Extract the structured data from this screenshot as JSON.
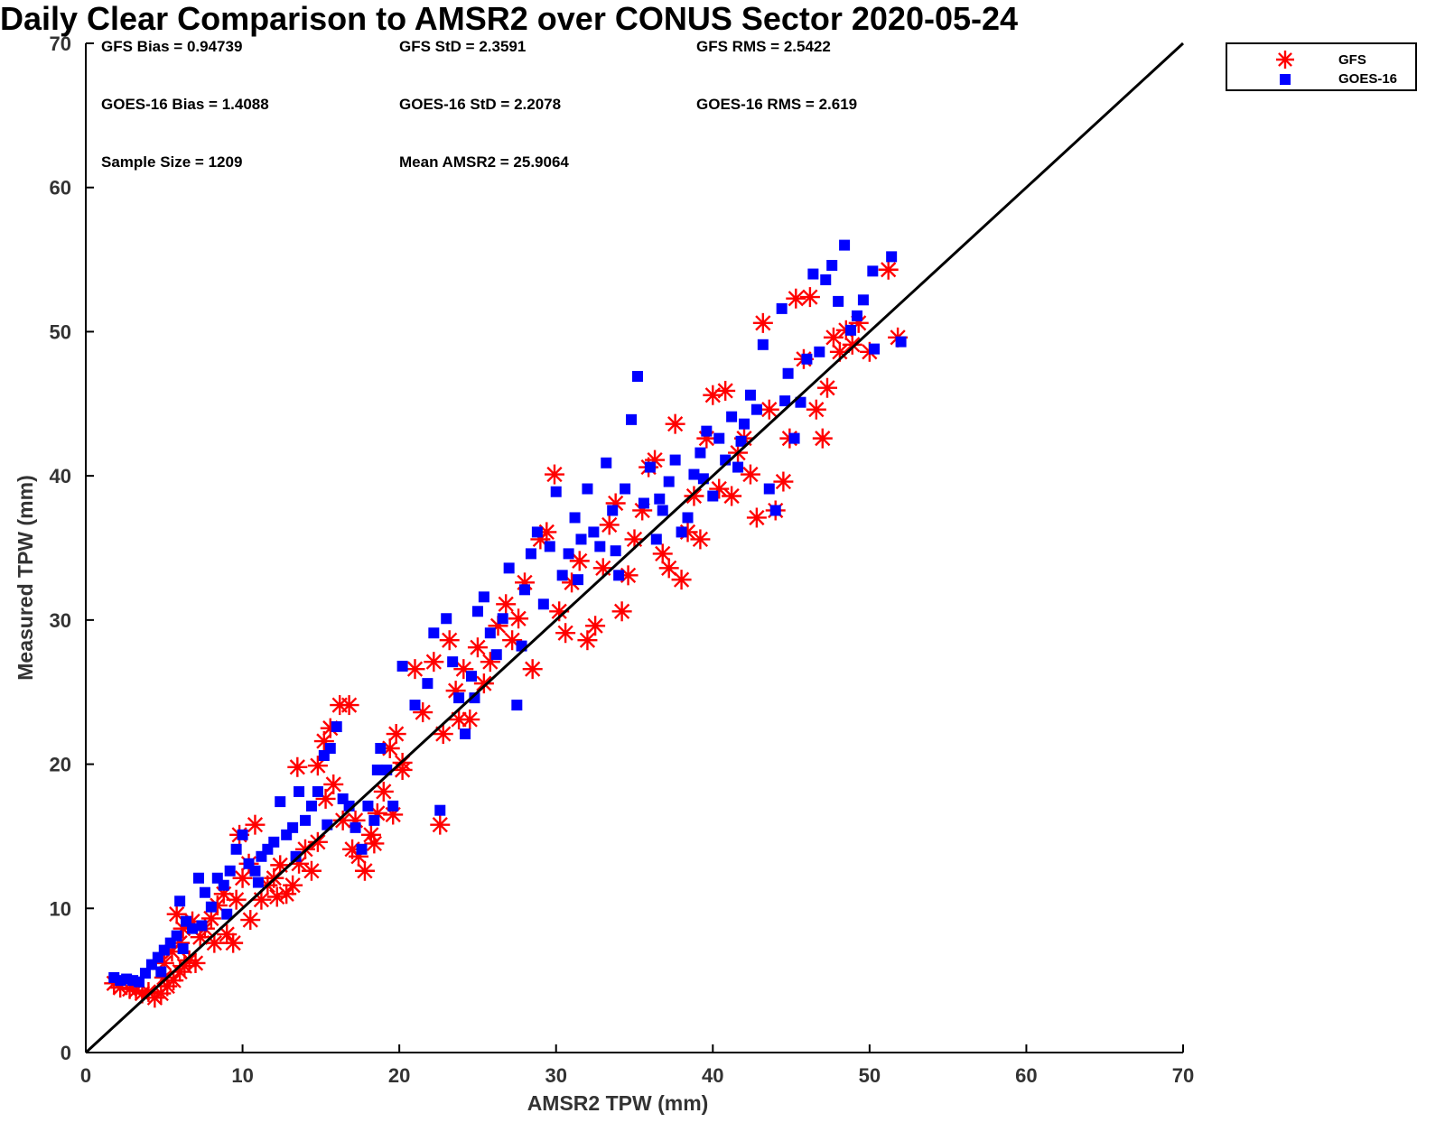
{
  "chart_data": {
    "type": "scatter",
    "title": "Daily Clear Comparison to AMSR2 over CONUS Sector 2020-05-24",
    "xlabel": "AMSR2 TPW (mm)",
    "ylabel": "Measured TPW (mm)",
    "xlim": [
      0,
      70
    ],
    "ylim": [
      0,
      70
    ],
    "xticks": [
      "0",
      "10",
      "20",
      "30",
      "40",
      "50",
      "60",
      "70"
    ],
    "yticks": [
      "0",
      "10",
      "20",
      "30",
      "40",
      "50",
      "60",
      "70"
    ],
    "grid": false,
    "legend_position": "top-right outside",
    "reference_line": "1:1 diagonal",
    "stats": [
      "GFS Bias = 0.94739",
      "GFS StD = 2.3591",
      "GFS RMS = 2.5422",
      "GOES-16 Bias = 1.4088",
      "GOES-16 StD = 2.2078",
      "GOES-16 RMS = 2.619",
      "Sample Size = 1209",
      "Mean AMSR2 = 25.9064"
    ],
    "series": [
      {
        "name": "GFS",
        "color": "#ff0000",
        "marker": "asterisk",
        "points": [
          [
            1.8,
            4.8
          ],
          [
            2.2,
            4.5
          ],
          [
            2.8,
            4.4
          ],
          [
            3.2,
            4.3
          ],
          [
            3.6,
            4.1
          ],
          [
            4.0,
            4.2
          ],
          [
            4.4,
            3.8
          ],
          [
            4.8,
            4.1
          ],
          [
            5.2,
            4.6
          ],
          [
            5.6,
            5.0
          ],
          [
            6.0,
            5.6
          ],
          [
            6.3,
            6.0
          ],
          [
            6.6,
            6.4
          ],
          [
            5.0,
            6.2
          ],
          [
            5.5,
            7.0
          ],
          [
            6.0,
            7.6
          ],
          [
            6.2,
            8.6
          ],
          [
            6.8,
            9.1
          ],
          [
            5.8,
            9.6
          ],
          [
            7.3,
            8.0
          ],
          [
            7.6,
            8.6
          ],
          [
            8.0,
            9.3
          ],
          [
            8.4,
            10.2
          ],
          [
            8.8,
            11.0
          ],
          [
            9.0,
            8.2
          ],
          [
            9.4,
            7.6
          ],
          [
            9.6,
            10.6
          ],
          [
            10.0,
            12.1
          ],
          [
            10.4,
            13.1
          ],
          [
            10.8,
            15.8
          ],
          [
            9.8,
            15.1
          ],
          [
            11.2,
            10.6
          ],
          [
            11.6,
            11.6
          ],
          [
            12.0,
            12.1
          ],
          [
            12.4,
            13.0
          ],
          [
            12.8,
            11.0
          ],
          [
            13.2,
            11.6
          ],
          [
            13.6,
            13.1
          ],
          [
            14.0,
            14.1
          ],
          [
            14.4,
            12.6
          ],
          [
            13.5,
            19.8
          ],
          [
            14.8,
            19.9
          ],
          [
            15.2,
            21.6
          ],
          [
            15.6,
            22.5
          ],
          [
            16.2,
            24.1
          ],
          [
            16.8,
            24.1
          ],
          [
            15.3,
            17.6
          ],
          [
            15.8,
            18.6
          ],
          [
            16.4,
            16.1
          ],
          [
            17.0,
            14.1
          ],
          [
            17.4,
            13.6
          ],
          [
            17.8,
            12.6
          ],
          [
            18.2,
            15.1
          ],
          [
            18.6,
            16.6
          ],
          [
            19.0,
            18.1
          ],
          [
            19.4,
            21.1
          ],
          [
            19.8,
            22.1
          ],
          [
            20.2,
            19.6
          ],
          [
            19.6,
            16.5
          ],
          [
            18.4,
            14.5
          ],
          [
            21.0,
            26.6
          ],
          [
            21.5,
            23.6
          ],
          [
            22.2,
            27.1
          ],
          [
            22.6,
            15.8
          ],
          [
            22.8,
            22.1
          ],
          [
            23.2,
            28.6
          ],
          [
            23.6,
            25.1
          ],
          [
            24.1,
            26.6
          ],
          [
            24.5,
            23.1
          ],
          [
            25.0,
            28.1
          ],
          [
            25.4,
            25.6
          ],
          [
            25.8,
            27.1
          ],
          [
            26.3,
            29.6
          ],
          [
            26.8,
            31.1
          ],
          [
            27.2,
            28.6
          ],
          [
            27.6,
            30.1
          ],
          [
            28.0,
            32.6
          ],
          [
            28.5,
            26.6
          ],
          [
            29.0,
            35.6
          ],
          [
            29.4,
            36.1
          ],
          [
            29.9,
            40.1
          ],
          [
            30.2,
            30.6
          ],
          [
            30.6,
            29.1
          ],
          [
            31.0,
            32.6
          ],
          [
            31.5,
            34.1
          ],
          [
            32.0,
            28.6
          ],
          [
            32.5,
            29.6
          ],
          [
            33.0,
            33.6
          ],
          [
            33.4,
            36.6
          ],
          [
            33.8,
            38.1
          ],
          [
            34.2,
            30.6
          ],
          [
            34.6,
            33.1
          ],
          [
            35.0,
            35.6
          ],
          [
            35.5,
            37.6
          ],
          [
            35.9,
            40.6
          ],
          [
            36.3,
            41.1
          ],
          [
            36.8,
            34.6
          ],
          [
            37.2,
            33.6
          ],
          [
            37.6,
            43.6
          ],
          [
            38.0,
            32.8
          ],
          [
            38.4,
            36.1
          ],
          [
            38.8,
            38.6
          ],
          [
            39.2,
            35.6
          ],
          [
            39.6,
            42.6
          ],
          [
            40.0,
            45.6
          ],
          [
            40.4,
            39.1
          ],
          [
            40.8,
            45.9
          ],
          [
            41.2,
            38.6
          ],
          [
            41.6,
            41.6
          ],
          [
            42.0,
            42.6
          ],
          [
            42.4,
            40.1
          ],
          [
            42.8,
            37.1
          ],
          [
            43.2,
            50.6
          ],
          [
            43.6,
            44.6
          ],
          [
            44.0,
            37.6
          ],
          [
            44.5,
            39.6
          ],
          [
            44.9,
            42.6
          ],
          [
            45.3,
            52.3
          ],
          [
            45.8,
            48.1
          ],
          [
            46.2,
            52.4
          ],
          [
            46.6,
            44.6
          ],
          [
            47.0,
            42.6
          ],
          [
            47.3,
            46.1
          ],
          [
            47.7,
            49.6
          ],
          [
            48.1,
            48.6
          ],
          [
            48.5,
            50.1
          ],
          [
            48.9,
            49.1
          ],
          [
            49.3,
            50.6
          ],
          [
            50.0,
            48.6
          ],
          [
            51.2,
            54.3
          ],
          [
            51.8,
            49.6
          ],
          [
            5.0,
            5.2
          ],
          [
            7.0,
            6.2
          ],
          [
            8.2,
            7.6
          ],
          [
            10.5,
            9.2
          ],
          [
            12.2,
            10.8
          ],
          [
            14.8,
            14.6
          ],
          [
            17.2,
            16.1
          ],
          [
            20.2,
            20.1
          ],
          [
            23.8,
            23.1
          ]
        ]
      },
      {
        "name": "GOES-16",
        "color": "#0000ff",
        "marker": "square",
        "points": [
          [
            1.8,
            5.2
          ],
          [
            2.2,
            5.0
          ],
          [
            2.6,
            5.1
          ],
          [
            3.0,
            5.0
          ],
          [
            3.4,
            4.9
          ],
          [
            3.8,
            5.5
          ],
          [
            4.2,
            6.1
          ],
          [
            4.6,
            6.6
          ],
          [
            5.0,
            7.1
          ],
          [
            5.4,
            7.6
          ],
          [
            5.8,
            8.1
          ],
          [
            6.0,
            10.5
          ],
          [
            6.4,
            9.1
          ],
          [
            6.8,
            8.6
          ],
          [
            7.2,
            12.1
          ],
          [
            7.6,
            11.1
          ],
          [
            8.0,
            10.1
          ],
          [
            8.4,
            12.1
          ],
          [
            8.8,
            11.6
          ],
          [
            9.2,
            12.6
          ],
          [
            9.6,
            14.1
          ],
          [
            10.0,
            15.1
          ],
          [
            10.4,
            13.1
          ],
          [
            10.8,
            12.6
          ],
          [
            11.2,
            13.6
          ],
          [
            11.6,
            14.1
          ],
          [
            12.0,
            14.6
          ],
          [
            12.4,
            17.4
          ],
          [
            12.8,
            15.1
          ],
          [
            13.2,
            15.6
          ],
          [
            13.6,
            18.1
          ],
          [
            14.0,
            16.1
          ],
          [
            14.4,
            17.1
          ],
          [
            14.8,
            18.1
          ],
          [
            15.2,
            20.6
          ],
          [
            15.6,
            21.1
          ],
          [
            16.0,
            22.6
          ],
          [
            16.4,
            17.6
          ],
          [
            16.8,
            17.1
          ],
          [
            17.2,
            15.6
          ],
          [
            17.6,
            14.1
          ],
          [
            18.0,
            17.1
          ],
          [
            18.4,
            16.1
          ],
          [
            18.8,
            21.1
          ],
          [
            19.2,
            19.6
          ],
          [
            19.6,
            17.1
          ],
          [
            20.2,
            26.8
          ],
          [
            21.0,
            24.1
          ],
          [
            21.8,
            25.6
          ],
          [
            22.2,
            29.1
          ],
          [
            22.6,
            16.8
          ],
          [
            23.0,
            30.1
          ],
          [
            23.4,
            27.1
          ],
          [
            23.8,
            24.6
          ],
          [
            24.2,
            22.1
          ],
          [
            24.6,
            26.1
          ],
          [
            25.0,
            30.6
          ],
          [
            25.4,
            31.6
          ],
          [
            25.8,
            29.1
          ],
          [
            26.2,
            27.6
          ],
          [
            26.6,
            30.1
          ],
          [
            27.0,
            33.6
          ],
          [
            27.5,
            24.1
          ],
          [
            28.0,
            32.1
          ],
          [
            28.4,
            34.6
          ],
          [
            28.8,
            36.1
          ],
          [
            29.2,
            31.1
          ],
          [
            29.6,
            35.1
          ],
          [
            30.0,
            38.9
          ],
          [
            30.4,
            33.1
          ],
          [
            30.8,
            34.6
          ],
          [
            31.2,
            37.1
          ],
          [
            31.6,
            35.6
          ],
          [
            32.0,
            39.1
          ],
          [
            32.4,
            36.1
          ],
          [
            32.8,
            35.1
          ],
          [
            33.2,
            40.9
          ],
          [
            33.6,
            37.6
          ],
          [
            34.0,
            33.1
          ],
          [
            34.4,
            39.1
          ],
          [
            34.8,
            43.9
          ],
          [
            35.2,
            46.9
          ],
          [
            35.6,
            38.1
          ],
          [
            36.0,
            40.6
          ],
          [
            36.4,
            35.6
          ],
          [
            36.8,
            37.6
          ],
          [
            37.2,
            39.6
          ],
          [
            37.6,
            41.1
          ],
          [
            38.0,
            36.1
          ],
          [
            38.4,
            37.1
          ],
          [
            38.8,
            40.1
          ],
          [
            39.2,
            41.6
          ],
          [
            39.6,
            43.1
          ],
          [
            40.0,
            38.6
          ],
          [
            40.4,
            42.6
          ],
          [
            40.8,
            41.1
          ],
          [
            41.2,
            44.1
          ],
          [
            41.6,
            40.6
          ],
          [
            42.0,
            43.6
          ],
          [
            42.4,
            45.6
          ],
          [
            42.8,
            44.6
          ],
          [
            43.2,
            49.1
          ],
          [
            43.6,
            39.1
          ],
          [
            44.0,
            37.6
          ],
          [
            44.4,
            51.6
          ],
          [
            44.8,
            47.1
          ],
          [
            45.2,
            42.6
          ],
          [
            45.6,
            45.1
          ],
          [
            46.0,
            48.1
          ],
          [
            46.4,
            54.0
          ],
          [
            46.8,
            48.6
          ],
          [
            47.2,
            53.6
          ],
          [
            47.6,
            54.6
          ],
          [
            48.0,
            52.1
          ],
          [
            48.4,
            56.0
          ],
          [
            48.8,
            50.1
          ],
          [
            49.2,
            51.1
          ],
          [
            49.6,
            52.2
          ],
          [
            50.2,
            54.2
          ],
          [
            50.3,
            48.8
          ],
          [
            51.4,
            55.2
          ],
          [
            52.0,
            49.3
          ],
          [
            4.8,
            5.6
          ],
          [
            6.2,
            7.2
          ],
          [
            7.4,
            8.8
          ],
          [
            9.0,
            9.6
          ],
          [
            11.0,
            11.8
          ],
          [
            13.4,
            13.6
          ],
          [
            15.4,
            15.8
          ],
          [
            18.6,
            19.6
          ],
          [
            24.8,
            24.6
          ],
          [
            27.8,
            28.2
          ],
          [
            31.4,
            32.8
          ],
          [
            33.8,
            34.8
          ],
          [
            36.6,
            38.4
          ],
          [
            39.4,
            39.8
          ],
          [
            41.8,
            42.4
          ],
          [
            44.6,
            45.2
          ]
        ]
      }
    ]
  }
}
